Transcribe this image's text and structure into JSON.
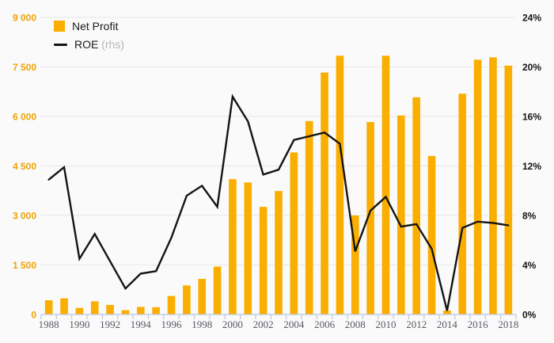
{
  "chart_data": {
    "type": "bar",
    "subtype": "bar-line-combo",
    "title": "",
    "categories": [
      1988,
      1989,
      1990,
      1991,
      1992,
      1993,
      1994,
      1995,
      1996,
      1997,
      1998,
      1999,
      2000,
      2001,
      2002,
      2003,
      2004,
      2005,
      2006,
      2007,
      2008,
      2009,
      2010,
      2011,
      2012,
      2013,
      2014,
      2015,
      2016,
      2017,
      2018
    ],
    "series": [
      {
        "name": "Net Profit",
        "type": "bar",
        "axis": "left",
        "color": "#FAAE00",
        "values": [
          430,
          490,
          200,
          400,
          290,
          130,
          230,
          220,
          560,
          880,
          1080,
          1450,
          4100,
          4000,
          3260,
          3740,
          4910,
          5860,
          7330,
          7840,
          3000,
          5830,
          7840,
          6030,
          6580,
          4800,
          120,
          6690,
          7720,
          7790,
          7540
        ]
      },
      {
        "name": "ROE",
        "type": "line",
        "axis": "right",
        "color": "#141414",
        "values": [
          10.9,
          11.9,
          4.5,
          6.5,
          4.3,
          2.1,
          3.3,
          3.5,
          6.2,
          9.6,
          10.4,
          8.7,
          17.6,
          15.6,
          11.3,
          11.7,
          14.1,
          14.4,
          14.7,
          13.8,
          5.1,
          8.4,
          9.5,
          7.1,
          7.3,
          5.3,
          0.3,
          7.0,
          7.5,
          7.4,
          7.2
        ]
      }
    ],
    "left_axis": {
      "min": 0,
      "max": 9000,
      "tick_step": 1500,
      "tick_labels": [
        "0",
        "1 500",
        "3 000",
        "4 500",
        "6 000",
        "7 500",
        "9 000"
      ],
      "label_color": "#F0A202"
    },
    "right_axis": {
      "min": 0,
      "max": 24,
      "tick_step": 4,
      "tick_labels": [
        "0%",
        "4%",
        "8%",
        "12%",
        "16%",
        "20%",
        "24%"
      ],
      "label_color": "#141414"
    },
    "x_axis": {
      "label_every": 2,
      "first_label": "1988",
      "last_label": "2018",
      "label_color": "#585864"
    },
    "grid": "horizontal",
    "legend_position": "top-left-inside"
  },
  "legend": {
    "net_profit_label": "Net Profit",
    "roe_label": "ROE",
    "roe_suffix": "(rhs)"
  },
  "colors": {
    "background": "#fafafa",
    "bar": "#FAAE00",
    "line": "#141414",
    "gridline": "#e7e7e7",
    "axis": "#bcc6e2"
  }
}
